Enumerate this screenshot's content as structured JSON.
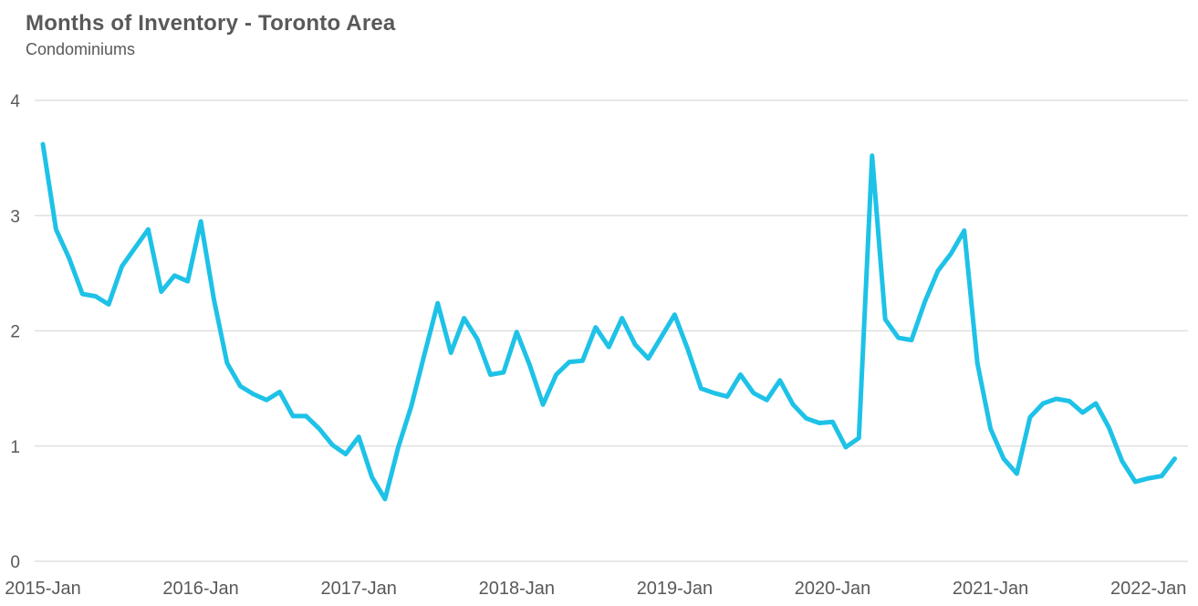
{
  "header": {
    "title": "Months of Inventory - Toronto Area",
    "subtitle": "Condominiums"
  },
  "colors": {
    "line": "#1ec2e7",
    "grid": "#e0e0e0",
    "title_text": "#58595b",
    "tick_text": "#58595b",
    "background": "#ffffff"
  },
  "chart_data": {
    "type": "line",
    "title": "Months of Inventory - Toronto Area",
    "subtitle": "Condominiums",
    "xlabel": "",
    "ylabel": "",
    "ylim": [
      0,
      4
    ],
    "y_ticks": [
      0,
      1,
      2,
      3,
      4
    ],
    "x_tick_labels": [
      "2015-Jan",
      "2016-Jan",
      "2017-Jan",
      "2018-Jan",
      "2019-Jan",
      "2020-Jan",
      "2021-Jan",
      "2022-Jan"
    ],
    "grid": "horizontal",
    "legend_position": "none",
    "months": [
      "2015-Jan",
      "2015-Feb",
      "2015-Mar",
      "2015-Apr",
      "2015-May",
      "2015-Jun",
      "2015-Jul",
      "2015-Aug",
      "2015-Sep",
      "2015-Oct",
      "2015-Nov",
      "2015-Dec",
      "2016-Jan",
      "2016-Feb",
      "2016-Mar",
      "2016-Apr",
      "2016-May",
      "2016-Jun",
      "2016-Jul",
      "2016-Aug",
      "2016-Sep",
      "2016-Oct",
      "2016-Nov",
      "2016-Dec",
      "2017-Jan",
      "2017-Feb",
      "2017-Mar",
      "2017-Apr",
      "2017-May",
      "2017-Jun",
      "2017-Jul",
      "2017-Aug",
      "2017-Sep",
      "2017-Oct",
      "2017-Nov",
      "2017-Dec",
      "2018-Jan",
      "2018-Feb",
      "2018-Mar",
      "2018-Apr",
      "2018-May",
      "2018-Jun",
      "2018-Jul",
      "2018-Aug",
      "2018-Sep",
      "2018-Oct",
      "2018-Nov",
      "2018-Dec",
      "2019-Jan",
      "2019-Feb",
      "2019-Mar",
      "2019-Apr",
      "2019-May",
      "2019-Jun",
      "2019-Jul",
      "2019-Aug",
      "2019-Sep",
      "2019-Oct",
      "2019-Nov",
      "2019-Dec",
      "2020-Jan",
      "2020-Feb",
      "2020-Mar",
      "2020-Apr",
      "2020-May",
      "2020-Jun",
      "2020-Jul",
      "2020-Aug",
      "2020-Sep",
      "2020-Oct",
      "2020-Nov",
      "2020-Dec",
      "2021-Jan",
      "2021-Feb",
      "2021-Mar",
      "2021-Apr",
      "2021-May",
      "2021-Jun",
      "2021-Jul",
      "2021-Aug",
      "2021-Sep",
      "2021-Oct",
      "2021-Nov",
      "2021-Dec",
      "2022-Jan",
      "2022-Feb",
      "2022-Mar"
    ],
    "series": [
      {
        "name": "Months of Inventory (Condominiums)",
        "color": "#1ec2e7",
        "values": [
          3.62,
          2.88,
          2.63,
          2.32,
          2.3,
          2.23,
          2.56,
          2.72,
          2.88,
          2.34,
          2.48,
          2.43,
          2.95,
          2.27,
          1.72,
          1.52,
          1.45,
          1.4,
          1.47,
          1.26,
          1.26,
          1.15,
          1.01,
          0.93,
          1.08,
          0.73,
          0.54,
          0.99,
          1.35,
          1.8,
          2.24,
          1.81,
          2.11,
          1.93,
          1.62,
          1.64,
          1.99,
          1.7,
          1.36,
          1.62,
          1.73,
          1.74,
          2.03,
          1.86,
          2.11,
          1.88,
          1.76,
          1.95,
          2.14,
          1.84,
          1.5,
          1.46,
          1.43,
          1.62,
          1.46,
          1.4,
          1.57,
          1.36,
          1.24,
          1.2,
          1.21,
          0.99,
          1.07,
          3.52,
          2.1,
          1.94,
          1.92,
          2.25,
          2.52,
          2.67,
          2.87,
          1.72,
          1.15,
          0.89,
          0.76,
          1.25,
          1.37,
          1.41,
          1.39,
          1.29,
          1.37,
          1.16,
          0.87,
          0.69,
          0.72,
          0.74,
          0.89
        ]
      }
    ]
  }
}
